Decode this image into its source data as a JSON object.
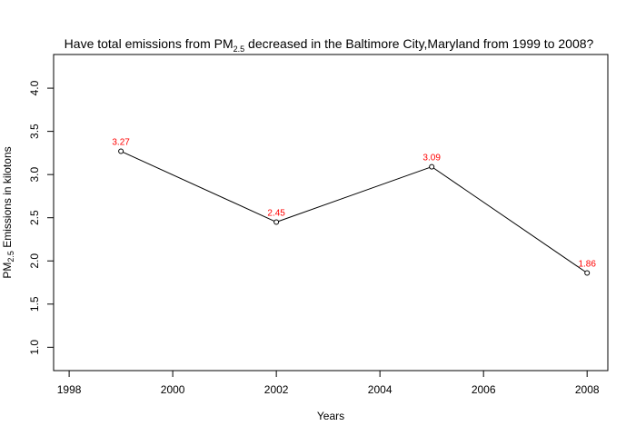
{
  "chart_data": {
    "type": "line",
    "title": {
      "prefix": "Have total emissions from PM",
      "subscript": "2.5",
      "suffix": " decreased in the Baltimore City,Maryland from 1999 to 2008?"
    },
    "xlabel": "Years",
    "ylabel": {
      "prefix": "PM",
      "subscript": "2.5",
      "suffix": " Emissions in kilotons"
    },
    "x": [
      1999,
      2002,
      2005,
      2008
    ],
    "series": [
      {
        "values": [
          3.27,
          2.45,
          3.09,
          1.86
        ]
      }
    ],
    "data_labels": [
      "3.27",
      "2.45",
      "3.09",
      "1.86"
    ],
    "xlim": [
      1997.7,
      2008.4
    ],
    "ylim": [
      0.73,
      4.39
    ],
    "xticks": [
      1998,
      2000,
      2002,
      2004,
      2006,
      2008
    ],
    "yticks": [
      1.0,
      1.5,
      2.0,
      2.5,
      3.0,
      3.5,
      4.0
    ],
    "xtick_labels": [
      "1998",
      "2000",
      "2002",
      "2004",
      "2006",
      "2008"
    ],
    "ytick_labels": [
      "1.0",
      "1.5",
      "2.0",
      "2.5",
      "3.0",
      "3.5",
      "4.0"
    ],
    "grid": false,
    "line_color": "#000000",
    "marker": "open-circle",
    "label_color": "#ff0000"
  }
}
